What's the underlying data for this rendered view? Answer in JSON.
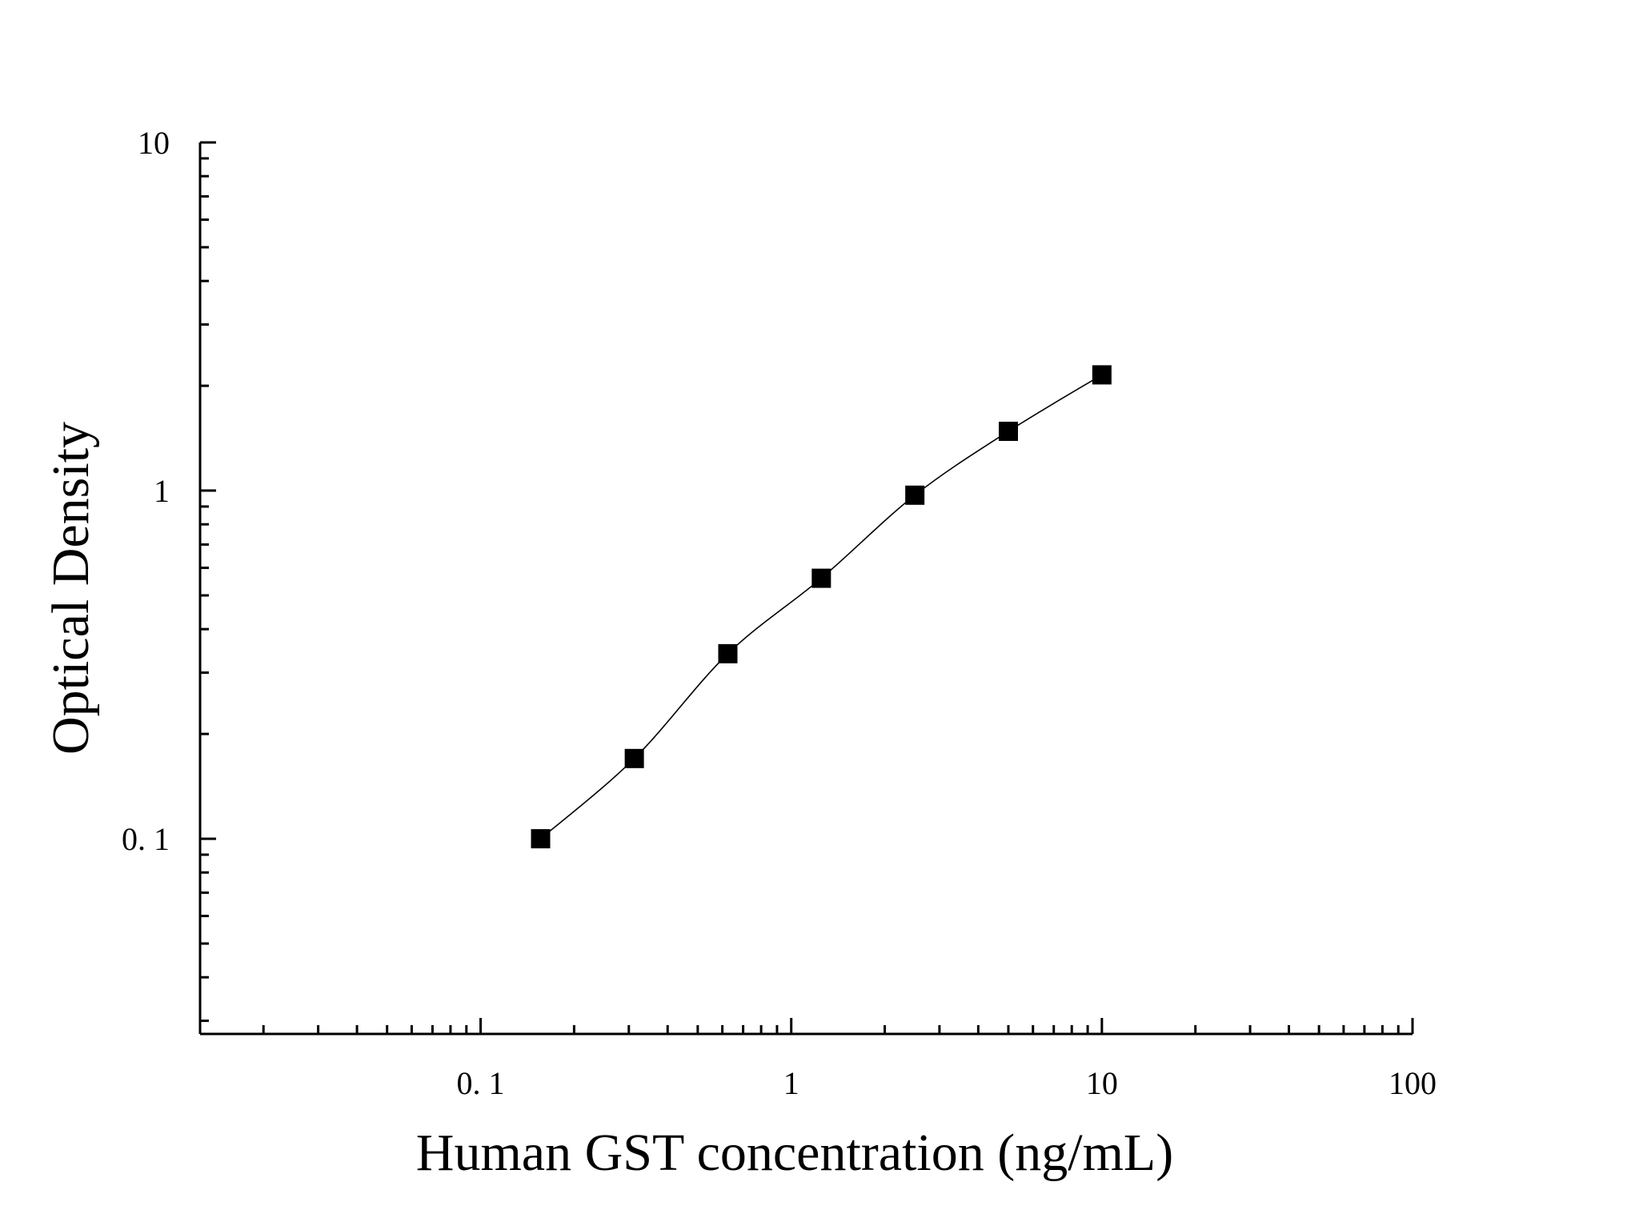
{
  "chart_data": {
    "type": "scatter",
    "title": "",
    "xlabel": "Human GST concentration (ng/mL)",
    "ylabel": "Optical Density",
    "x_scale": "log",
    "y_scale": "log",
    "xlim": [
      0.0125,
      100
    ],
    "ylim": [
      0.0275,
      10
    ],
    "x_ticks": [
      {
        "value": 0.1,
        "label": "0. 1"
      },
      {
        "value": 1,
        "label": "1"
      },
      {
        "value": 10,
        "label": "10"
      },
      {
        "value": 100,
        "label": "100"
      }
    ],
    "y_ticks": [
      {
        "value": 0.1,
        "label": "0. 1"
      },
      {
        "value": 1,
        "label": "1"
      },
      {
        "value": 10,
        "label": "10"
      }
    ],
    "grid": false,
    "legend": "none",
    "series": [
      {
        "marker": "square",
        "color": "#000000",
        "fit_line": true,
        "x": [
          0.156,
          0.3125,
          0.625,
          1.25,
          2.5,
          5,
          10
        ],
        "y": [
          0.1,
          0.17,
          0.34,
          0.56,
          0.97,
          1.48,
          2.15
        ]
      }
    ]
  }
}
